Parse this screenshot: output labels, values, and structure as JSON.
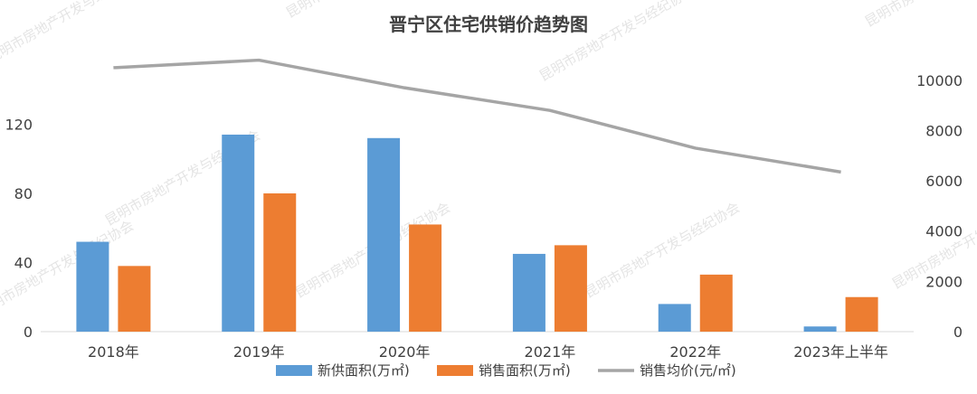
{
  "chart_data": {
    "type": "bar",
    "title": "晋宁区住宅供销价趋势图",
    "categories": [
      "2018年",
      "2019年",
      "2020年",
      "2021年",
      "2022年",
      "2023年上半年"
    ],
    "series": [
      {
        "name": "新供面积(万㎡)",
        "kind": "bar",
        "axis": "left",
        "color": "#5b9bd5",
        "values": [
          52,
          114,
          112,
          45,
          16,
          3
        ]
      },
      {
        "name": "销售面积(万㎡)",
        "kind": "bar",
        "axis": "left",
        "color": "#ed7d31",
        "values": [
          38,
          80,
          62,
          50,
          33,
          20
        ]
      }
    ],
    "line_series": {
      "name": "销售均价(元/㎡)",
      "kind": "line",
      "axis": "right",
      "color": "#a5a5a5",
      "values": [
        10500,
        10800,
        9700,
        8800,
        7300,
        6350
      ]
    },
    "y_left": {
      "ticks": [
        0,
        40,
        80,
        120
      ],
      "ylim": [
        0,
        160
      ]
    },
    "y_right": {
      "ticks": [
        0,
        2000,
        4000,
        6000,
        8000,
        10000
      ],
      "ylim": [
        0,
        11000
      ]
    },
    "grid": false,
    "legend_position": "bottom"
  },
  "watermark_text": "昆明市房地产开发与经纪协会"
}
